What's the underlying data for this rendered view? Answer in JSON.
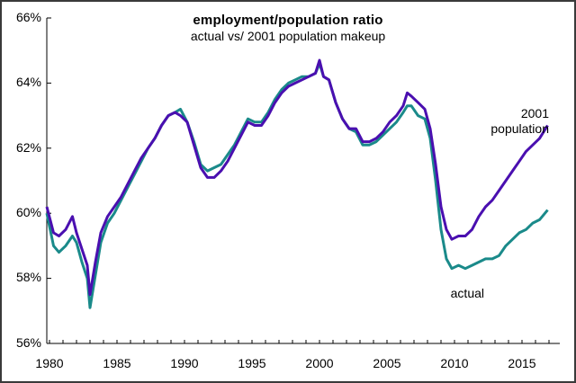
{
  "chart_data": {
    "type": "line",
    "title": "employment/population ratio",
    "subtitle": "actual vs/ 2001 population makeup",
    "xlabel": "",
    "ylabel": "",
    "ylim": [
      56,
      66
    ],
    "xlim": [
      1979.8,
      2016.9
    ],
    "y_ticks": [
      "56%",
      "58%",
      "60%",
      "62%",
      "64%",
      "66%"
    ],
    "x_ticks": [
      "1980",
      "1985",
      "1990",
      "1995",
      "2000",
      "2005",
      "2010",
      "2015"
    ],
    "grid": false,
    "legend": "inline annotations",
    "x": [
      1979.8,
      1980.3,
      1980.7,
      1981.2,
      1981.7,
      1982.0,
      1982.4,
      1982.8,
      1983.0,
      1983.4,
      1983.8,
      1984.3,
      1984.8,
      1985.3,
      1985.8,
      1986.3,
      1986.8,
      1987.3,
      1987.8,
      1988.3,
      1988.8,
      1989.3,
      1989.7,
      1990.2,
      1990.7,
      1991.2,
      1991.7,
      1992.2,
      1992.7,
      1993.2,
      1993.7,
      1994.2,
      1994.7,
      1995.2,
      1995.7,
      1996.2,
      1996.7,
      1997.2,
      1997.7,
      1998.2,
      1998.7,
      1999.2,
      1999.7,
      2000.0,
      2000.3,
      2000.7,
      2001.2,
      2001.7,
      2002.2,
      2002.7,
      2003.2,
      2003.7,
      2004.2,
      2004.7,
      2005.2,
      2005.7,
      2006.2,
      2006.5,
      2006.8,
      2007.3,
      2007.8,
      2008.2,
      2008.6,
      2009.0,
      2009.4,
      2009.8,
      2010.3,
      2010.8,
      2011.3,
      2011.8,
      2012.3,
      2012.8,
      2013.3,
      2013.8,
      2014.3,
      2014.8,
      2015.3,
      2015.8,
      2016.3,
      2016.9
    ],
    "series": [
      {
        "name": "2001 population",
        "color": "#4a0fb0",
        "values": [
          60.2,
          59.4,
          59.3,
          59.5,
          59.9,
          59.4,
          58.9,
          58.4,
          57.5,
          58.5,
          59.4,
          59.9,
          60.2,
          60.5,
          60.9,
          61.3,
          61.7,
          62.0,
          62.3,
          62.7,
          63.0,
          63.1,
          63.0,
          62.8,
          62.1,
          61.4,
          61.1,
          61.1,
          61.3,
          61.6,
          62.0,
          62.4,
          62.8,
          62.7,
          62.7,
          63.0,
          63.4,
          63.7,
          63.9,
          64.0,
          64.1,
          64.2,
          64.3,
          64.7,
          64.2,
          64.1,
          63.4,
          62.9,
          62.6,
          62.6,
          62.2,
          62.2,
          62.3,
          62.5,
          62.8,
          63.0,
          63.3,
          63.7,
          63.6,
          63.4,
          63.2,
          62.6,
          61.5,
          60.2,
          59.5,
          59.2,
          59.3,
          59.3,
          59.5,
          59.9,
          60.2,
          60.4,
          60.7,
          61.0,
          61.3,
          61.6,
          61.9,
          62.1,
          62.3,
          62.7
        ]
      },
      {
        "name": "actual",
        "color": "#1a8a8a",
        "values": [
          60.0,
          59.0,
          58.8,
          59.0,
          59.3,
          59.1,
          58.5,
          58.0,
          57.1,
          58.1,
          59.1,
          59.7,
          60.0,
          60.4,
          60.8,
          61.2,
          61.6,
          62.0,
          62.3,
          62.7,
          63.0,
          63.1,
          63.2,
          62.8,
          62.2,
          61.5,
          61.3,
          61.4,
          61.5,
          61.8,
          62.1,
          62.5,
          62.9,
          62.8,
          62.8,
          63.1,
          63.5,
          63.8,
          64.0,
          64.1,
          64.2,
          64.2,
          64.3,
          64.6,
          64.2,
          64.1,
          63.4,
          62.9,
          62.6,
          62.5,
          62.1,
          62.1,
          62.2,
          62.4,
          62.6,
          62.8,
          63.1,
          63.3,
          63.3,
          63.0,
          62.9,
          62.3,
          61.0,
          59.5,
          58.6,
          58.3,
          58.4,
          58.3,
          58.4,
          58.5,
          58.6,
          58.6,
          58.7,
          59.0,
          59.2,
          59.4,
          59.5,
          59.7,
          59.8,
          60.1
        ]
      }
    ],
    "annotations": [
      {
        "text": "2001\npopulation",
        "near": "2016, 62.5%"
      },
      {
        "text": "actual",
        "near": "2011, 57.4%"
      }
    ]
  },
  "labels": {
    "title": "employment/population ratio",
    "subtitle": "actual vs/ 2001 population makeup",
    "ann_2001_line1": "2001",
    "ann_2001_line2": "population",
    "ann_actual": "actual",
    "y": [
      "66%",
      "64%",
      "62%",
      "60%",
      "58%",
      "56%"
    ],
    "x": [
      "1980",
      "1985",
      "1990",
      "1995",
      "2000",
      "2005",
      "2010",
      "2015"
    ]
  }
}
